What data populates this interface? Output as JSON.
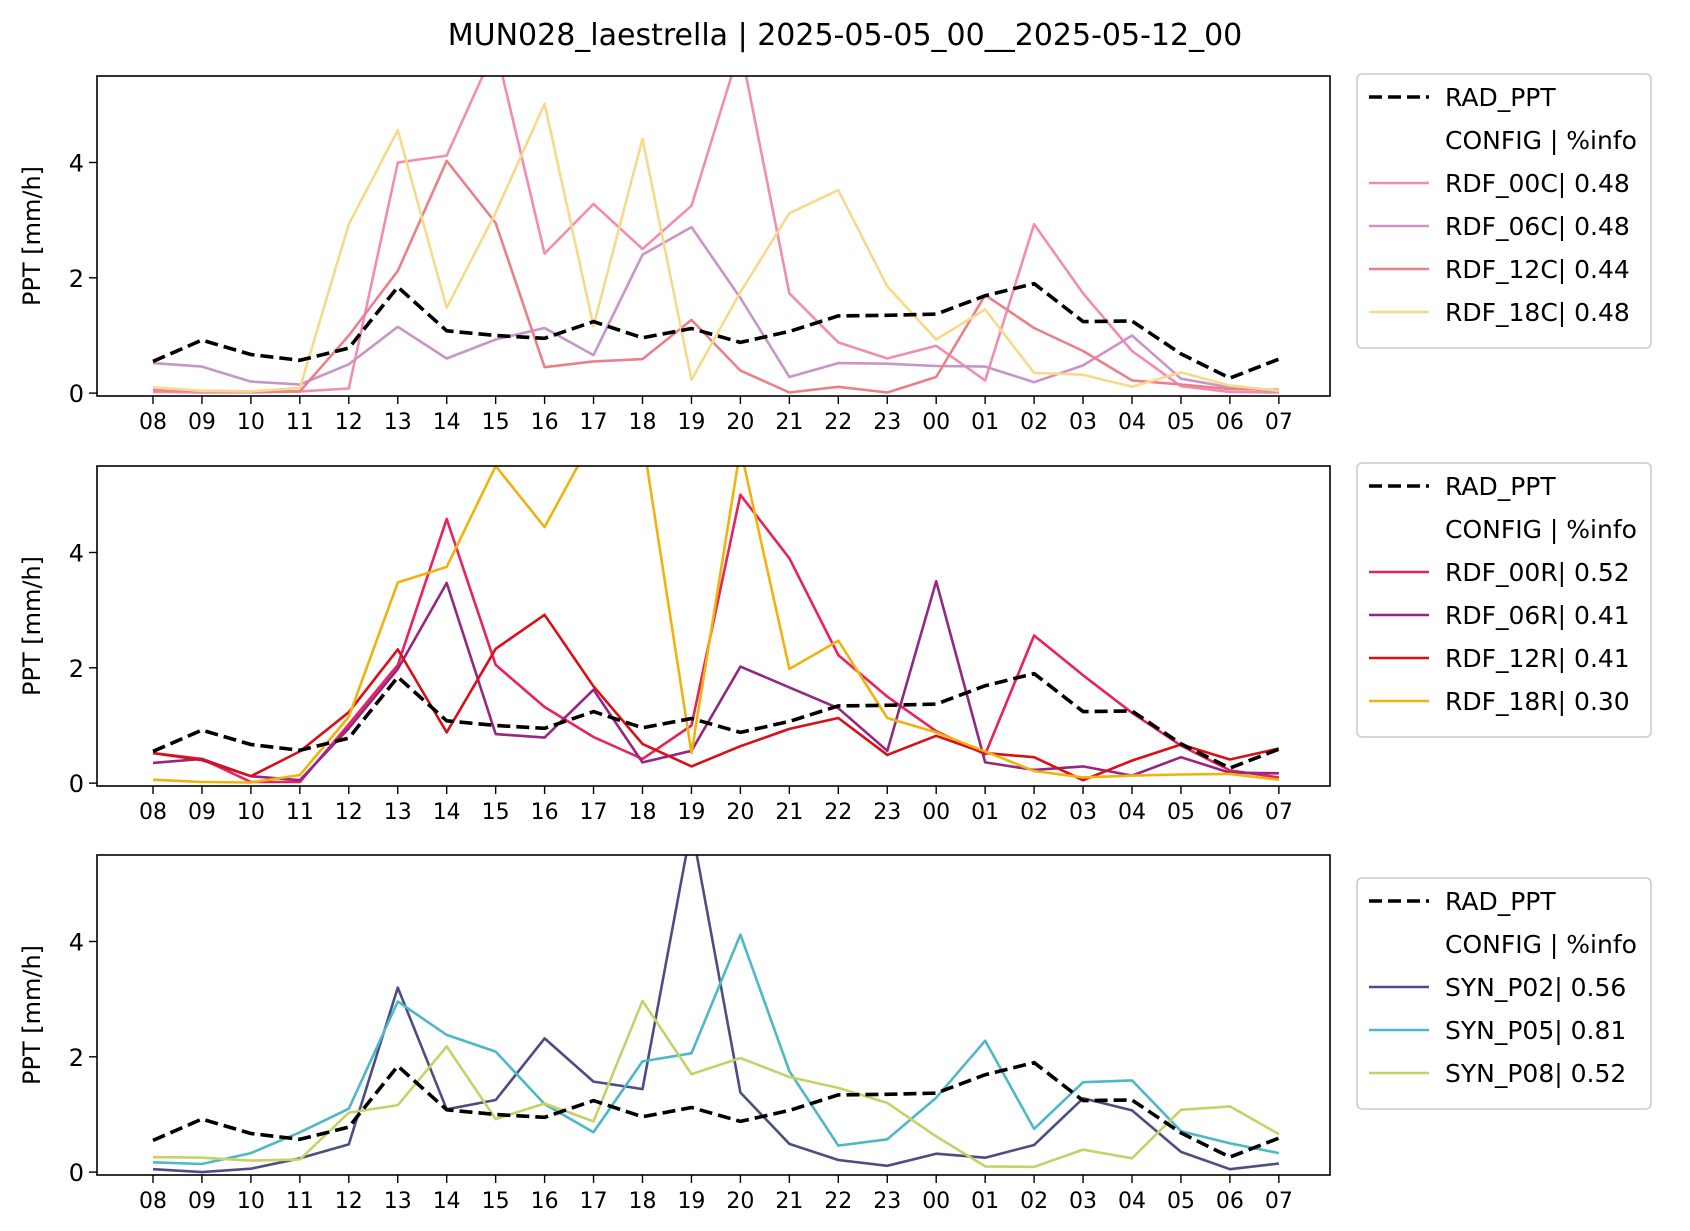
{
  "figure": {
    "title": "MUN028_laestrella | 2025-05-05_00__2025-05-12_00"
  },
  "legend_header": "CONFIG  | %info",
  "chart_data": [
    {
      "type": "line",
      "title": "",
      "xlabel": "",
      "ylabel": "PPT [mm/h]",
      "categories": [
        "08",
        "09",
        "10",
        "11",
        "12",
        "13",
        "14",
        "15",
        "16",
        "17",
        "18",
        "19",
        "20",
        "21",
        "22",
        "23",
        "00",
        "01",
        "02",
        "03",
        "04",
        "05",
        "06",
        "07"
      ],
      "ylim": [
        -0.05,
        5.5
      ],
      "yticks": [
        0,
        2,
        4
      ],
      "grid": false,
      "legend_position": "outside-right",
      "series": [
        {
          "name": "RAD_PPT",
          "color": "#000000",
          "dash": true,
          "values": [
            0.55,
            0.92,
            0.67,
            0.57,
            0.78,
            1.84,
            1.08,
            1.0,
            0.95,
            1.24,
            0.96,
            1.12,
            0.88,
            1.07,
            1.34,
            1.35,
            1.37,
            1.69,
            1.9,
            1.24,
            1.25,
            0.68,
            0.26,
            0.59
          ]
        },
        {
          "name": "RDF_00C| 0.48",
          "color": "#f28cb1",
          "values": [
            0.02,
            0.01,
            0.01,
            0.03,
            0.08,
            4.0,
            4.12,
            6.0,
            2.42,
            3.28,
            2.5,
            3.25,
            6.0,
            1.73,
            0.88,
            0.6,
            0.82,
            0.22,
            2.93,
            1.73,
            0.73,
            0.12,
            0.02,
            0.01
          ]
        },
        {
          "name": "RDF_06C| 0.48",
          "color": "#c994c7",
          "values": [
            0.52,
            0.46,
            0.2,
            0.15,
            0.5,
            1.15,
            0.6,
            0.93,
            1.13,
            0.66,
            2.4,
            2.88,
            1.65,
            0.28,
            0.52,
            0.51,
            0.47,
            0.46,
            0.19,
            0.48,
            1.0,
            0.25,
            0.1,
            0.03
          ]
        },
        {
          "name": "RDF_12C| 0.44",
          "color": "#e9808a",
          "values": [
            0.05,
            0.04,
            0.03,
            0.03,
            1.0,
            2.12,
            4.03,
            2.95,
            0.45,
            0.55,
            0.59,
            1.27,
            0.39,
            0.01,
            0.11,
            0.01,
            0.28,
            1.7,
            1.13,
            0.73,
            0.22,
            0.15,
            0.07,
            0.06
          ]
        },
        {
          "name": "RDF_18C| 0.48",
          "color": "#f7d98a",
          "values": [
            0.1,
            0.04,
            0.03,
            0.09,
            2.93,
            4.56,
            1.48,
            3.13,
            5.02,
            1.16,
            4.41,
            0.23,
            1.75,
            3.12,
            3.52,
            1.85,
            0.93,
            1.45,
            0.35,
            0.32,
            0.11,
            0.36,
            0.13,
            0.04
          ]
        }
      ]
    },
    {
      "type": "line",
      "title": "",
      "xlabel": "",
      "ylabel": "PPT [mm/h]",
      "categories": [
        "08",
        "09",
        "10",
        "11",
        "12",
        "13",
        "14",
        "15",
        "16",
        "17",
        "18",
        "19",
        "20",
        "21",
        "22",
        "23",
        "00",
        "01",
        "02",
        "03",
        "04",
        "05",
        "06",
        "07"
      ],
      "ylim": [
        -0.05,
        5.5
      ],
      "yticks": [
        0,
        2,
        4
      ],
      "grid": false,
      "legend_position": "outside-right",
      "series": [
        {
          "name": "RAD_PPT",
          "color": "#000000",
          "dash": true,
          "values": [
            0.55,
            0.92,
            0.67,
            0.57,
            0.78,
            1.84,
            1.08,
            1.0,
            0.95,
            1.24,
            0.96,
            1.12,
            0.88,
            1.07,
            1.34,
            1.35,
            1.37,
            1.69,
            1.9,
            1.24,
            1.25,
            0.68,
            0.26,
            0.59
          ]
        },
        {
          "name": "RDF_00R| 0.52",
          "color": "#e9215f",
          "values": [
            0.52,
            0.42,
            0.02,
            0.02,
            1.02,
            2.05,
            4.58,
            2.05,
            1.32,
            0.8,
            0.42,
            1.0,
            5.0,
            3.9,
            2.22,
            1.5,
            0.9,
            0.5,
            2.56,
            1.87,
            1.22,
            0.65,
            0.22,
            0.1
          ]
        },
        {
          "name": "RDF_06R| 0.41",
          "color": "#932782",
          "values": [
            0.35,
            0.42,
            0.12,
            0.05,
            0.95,
            1.98,
            3.47,
            0.85,
            0.79,
            1.62,
            0.36,
            0.56,
            2.02,
            1.66,
            1.3,
            0.56,
            3.5,
            0.36,
            0.23,
            0.29,
            0.13,
            0.45,
            0.18,
            0.17
          ]
        },
        {
          "name": "RDF_12R| 0.41",
          "color": "#d90f16",
          "values": [
            0.52,
            0.4,
            0.12,
            0.55,
            1.23,
            2.32,
            0.88,
            2.33,
            2.92,
            1.68,
            0.68,
            0.29,
            0.64,
            0.94,
            1.13,
            0.49,
            0.82,
            0.52,
            0.45,
            0.05,
            0.39,
            0.67,
            0.41,
            0.6
          ]
        },
        {
          "name": "RDF_18R| 0.30",
          "color": "#f0b20d",
          "values": [
            0.06,
            0.02,
            0.01,
            0.14,
            1.15,
            3.48,
            3.75,
            5.5,
            4.44,
            6.0,
            6.0,
            0.52,
            5.8,
            1.98,
            2.47,
            1.13,
            0.88,
            0.55,
            0.21,
            0.1,
            0.13,
            0.15,
            0.16,
            0.06
          ]
        }
      ]
    },
    {
      "type": "line",
      "title": "",
      "xlabel": "",
      "ylabel": "PPT [mm/h]",
      "categories": [
        "08",
        "09",
        "10",
        "11",
        "12",
        "13",
        "14",
        "15",
        "16",
        "17",
        "18",
        "19",
        "20",
        "21",
        "22",
        "23",
        "00",
        "01",
        "02",
        "03",
        "04",
        "05",
        "06",
        "07"
      ],
      "ylim": [
        -0.05,
        5.5
      ],
      "yticks": [
        0,
        2,
        4
      ],
      "grid": false,
      "legend_position": "outside-right",
      "series": [
        {
          "name": "RAD_PPT",
          "color": "#000000",
          "dash": true,
          "values": [
            0.55,
            0.92,
            0.67,
            0.57,
            0.78,
            1.84,
            1.08,
            1.0,
            0.95,
            1.24,
            0.96,
            1.12,
            0.88,
            1.07,
            1.34,
            1.35,
            1.37,
            1.69,
            1.9,
            1.24,
            1.25,
            0.68,
            0.26,
            0.59
          ]
        },
        {
          "name": "SYN_P02| 0.56",
          "color": "#4b4e82",
          "values": [
            0.05,
            0.0,
            0.06,
            0.24,
            0.48,
            3.2,
            1.09,
            1.25,
            2.32,
            1.57,
            1.44,
            6.0,
            1.38,
            0.49,
            0.21,
            0.11,
            0.32,
            0.25,
            0.47,
            1.28,
            1.07,
            0.35,
            0.05,
            0.15
          ]
        },
        {
          "name": "SYN_P05| 0.81",
          "color": "#4db8c6",
          "values": [
            0.17,
            0.14,
            0.33,
            0.69,
            1.1,
            2.96,
            2.38,
            2.09,
            1.18,
            0.69,
            1.92,
            2.06,
            4.12,
            1.75,
            0.46,
            0.57,
            1.29,
            2.28,
            0.75,
            1.56,
            1.59,
            0.71,
            0.5,
            0.33
          ]
        },
        {
          "name": "SYN_P08| 0.52",
          "color": "#c6d167",
          "values": [
            0.26,
            0.25,
            0.2,
            0.22,
            1.03,
            1.16,
            2.18,
            0.92,
            1.19,
            0.88,
            2.97,
            1.7,
            1.98,
            1.65,
            1.46,
            1.2,
            0.62,
            0.1,
            0.09,
            0.39,
            0.24,
            1.08,
            1.14,
            0.66
          ]
        }
      ]
    }
  ]
}
